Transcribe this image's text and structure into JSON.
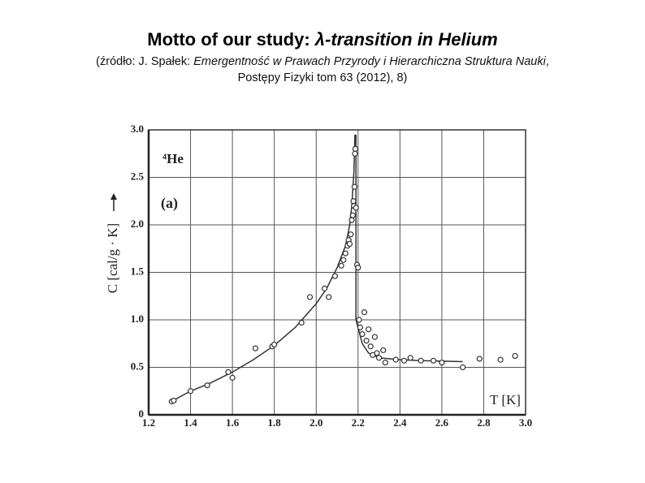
{
  "chart_data": {
    "type": "scatter",
    "title": "Motto of our study:",
    "title_italic": "λ-transition in Helium",
    "source_prefix": "(źródło: J. Spałek:",
    "source_title": "Emergentność w Prawach Przyrody i Hierarchiczna Struktura Nauki",
    "source_comma": ",",
    "source_journal": "Postępy Fizyki tom 63 (2012), 8)",
    "xlabel": "T [K]",
    "ylabel": "C [cal/g · K]",
    "annotations": [
      "⁴He",
      "(a)"
    ],
    "xlim": [
      1.2,
      3.0
    ],
    "ylim": [
      0,
      3.0
    ],
    "xticks": [
      1.2,
      1.4,
      1.6,
      1.8,
      {
        "value": 2.0,
        "label": "2.0"
      },
      2.2,
      2.4,
      2.6,
      2.8,
      {
        "value": 3.0,
        "label": "3.0"
      }
    ],
    "yticks": [
      0,
      0.5,
      {
        "value": 1.0,
        "label": "1.0"
      },
      1.5,
      {
        "value": 2.0,
        "label": "2.0"
      },
      2.5,
      {
        "value": 3.0,
        "label": "3.0"
      }
    ],
    "grid": true,
    "color": "#333333",
    "points": {
      "x": [
        1.31,
        1.32,
        1.4,
        1.48,
        1.58,
        1.6,
        1.71,
        1.79,
        1.8,
        1.93,
        1.97,
        2.04,
        2.06,
        2.09,
        2.12,
        2.13,
        2.14,
        2.15,
        2.155,
        2.16,
        2.165,
        2.17,
        2.175,
        2.178,
        2.18,
        2.183,
        2.185,
        2.187,
        2.19,
        2.195,
        2.2,
        2.205,
        2.21,
        2.22,
        2.23,
        2.24,
        2.25,
        2.26,
        2.27,
        2.28,
        2.29,
        2.3,
        2.32,
        2.33,
        2.38,
        2.42,
        2.45,
        2.5,
        2.56,
        2.6,
        2.7,
        2.78,
        2.88,
        2.95
      ],
      "y": [
        0.14,
        0.15,
        0.25,
        0.31,
        0.45,
        0.39,
        0.7,
        0.72,
        0.74,
        0.97,
        1.24,
        1.33,
        1.24,
        1.46,
        1.57,
        1.63,
        1.7,
        1.78,
        1.84,
        1.8,
        1.9,
        2.05,
        2.1,
        2.25,
        2.2,
        2.4,
        2.75,
        2.8,
        2.18,
        1.58,
        1.55,
        1.0,
        0.92,
        0.85,
        1.08,
        0.78,
        0.9,
        0.72,
        0.63,
        0.82,
        0.65,
        0.6,
        0.68,
        0.55,
        0.58,
        0.57,
        0.6,
        0.57,
        0.57,
        0.55,
        0.5,
        0.59,
        0.58,
        0.62
      ]
    },
    "curve": {
      "x": [
        1.3,
        1.4,
        1.5,
        1.6,
        1.7,
        1.8,
        1.9,
        2.0,
        2.05,
        2.1,
        2.14,
        2.16,
        2.17,
        2.18,
        2.185,
        null,
        2.19,
        2.19,
        2.22,
        2.25,
        2.3,
        2.4,
        2.5,
        2.7
      ],
      "y": [
        0.13,
        0.25,
        0.34,
        0.45,
        0.58,
        0.73,
        0.92,
        1.17,
        1.33,
        1.55,
        1.78,
        2.0,
        2.2,
        2.55,
        2.95,
        null,
        2.95,
        1.0,
        0.75,
        0.65,
        0.6,
        0.58,
        0.57,
        0.56
      ]
    }
  }
}
